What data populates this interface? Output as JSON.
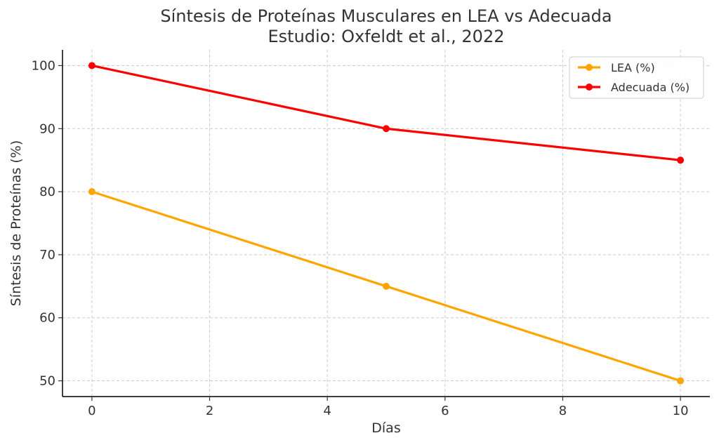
{
  "chart_data": {
    "type": "line",
    "title": "Síntesis de Proteínas Musculares en LEA vs Adecuada",
    "subtitle": "Estudio: Oxfeldt et al., 2022",
    "xlabel": "Días",
    "ylabel": "Síntesis de Proteínas (%)",
    "xlim": [
      -0.5,
      10.5
    ],
    "ylim": [
      47.5,
      102.5
    ],
    "xticks": [
      0,
      2,
      4,
      6,
      8,
      10
    ],
    "yticks": [
      50,
      60,
      70,
      80,
      90,
      100
    ],
    "grid": true,
    "legend_position": "top-right",
    "x": [
      0,
      5,
      10
    ],
    "series": [
      {
        "name": "LEA (%)",
        "color": "#FFA500",
        "values": [
          80,
          65,
          50
        ]
      },
      {
        "name": "Adecuada (%)",
        "color": "#FF0000",
        "values": [
          100,
          90,
          85
        ]
      }
    ]
  }
}
